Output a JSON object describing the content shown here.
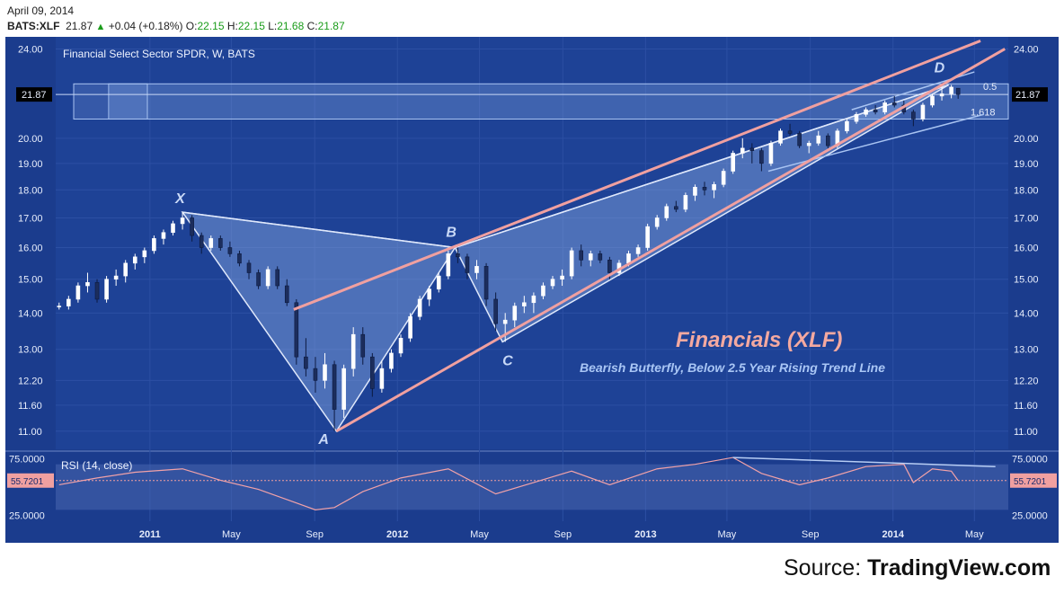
{
  "header": {
    "date": "April 09, 2014",
    "symbol": "BATS:XLF",
    "last": "21.87",
    "change": "+0.04 (+0.18%)",
    "open_label": "O:",
    "open": "22.15",
    "high_label": "H:",
    "high": "22.15",
    "low_label": "L:",
    "low": "21.68",
    "close_label": "C:",
    "close": "21.87"
  },
  "source": {
    "prefix": "Source: ",
    "name": "TradingView.com"
  },
  "colors": {
    "background": "#1b3c8d",
    "accent_pink": "#f0a0a0",
    "pattern_fill": "#8fb0e8",
    "title_pink": "#f4a9a0",
    "subtitle_blue": "#a9c6f5",
    "up_candle": "#ffffff",
    "down_candle": "#1c2d5c"
  },
  "chart_data": [
    {
      "type": "candlestick",
      "title": "Financial Select Sector SPDR, W, BATS",
      "annotation_title": "Financials (XLF)",
      "annotation_subtitle": "Bearish Butterfly, Below 2.5 Year Rising Trend Line",
      "y_scale": "log",
      "ylim": [
        10.6,
        24.6
      ],
      "y_ticks": [
        "24.00",
        "21.87",
        "20.00",
        "19.00",
        "18.00",
        "17.00",
        "16.00",
        "15.00",
        "14.00",
        "13.00",
        "12.20",
        "11.60",
        "11.00"
      ],
      "x_ticks": [
        "2011",
        "May",
        "Sep",
        "2012",
        "May",
        "Sep",
        "2013",
        "May",
        "Sep",
        "2014",
        "May"
      ],
      "x_tick_dates": [
        "2011-01-01",
        "2011-05-01",
        "2011-09-01",
        "2012-01-01",
        "2012-05-01",
        "2012-09-01",
        "2013-01-01",
        "2013-05-01",
        "2013-09-01",
        "2014-01-01",
        "2014-05-01"
      ],
      "xlim": [
        "2010-08-15",
        "2014-06-20"
      ],
      "last_price": "21.87",
      "fib_labels": [
        "0.5",
        "1.618"
      ],
      "fib_zone": [
        20.8,
        22.35
      ],
      "pattern_points": [
        {
          "label": "X",
          "date": "2011-02-18",
          "price": 17.2
        },
        {
          "label": "A",
          "date": "2011-10-03",
          "price": 11.0
        },
        {
          "label": "B",
          "date": "2012-03-26",
          "price": 16.0
        },
        {
          "label": "C",
          "date": "2012-06-04",
          "price": 13.2
        },
        {
          "label": "D",
          "date": "2014-03-24",
          "price": 22.3
        }
      ],
      "trend_lines": [
        {
          "name": "rising-trend-line",
          "color": "pink",
          "points": [
            [
              "2011-10-03",
              11.0
            ],
            [
              "2014-06-15",
              24.0
            ]
          ]
        },
        {
          "name": "upper-trend-line",
          "color": "pink",
          "points": [
            [
              "2011-08-01",
              14.1
            ],
            [
              "2014-05-10",
              24.4
            ]
          ]
        }
      ],
      "candles": [
        [
          "2010-08-20",
          14.2,
          14.3,
          14.1,
          14.2
        ],
        [
          "2010-09-03",
          14.2,
          14.5,
          14.1,
          14.4
        ],
        [
          "2010-09-17",
          14.4,
          14.9,
          14.3,
          14.8
        ],
        [
          "2010-10-01",
          14.8,
          15.2,
          14.6,
          14.9
        ],
        [
          "2010-10-15",
          14.9,
          15.0,
          14.3,
          14.4
        ],
        [
          "2010-10-29",
          14.4,
          15.1,
          14.3,
          15.0
        ],
        [
          "2010-11-12",
          15.0,
          15.3,
          14.8,
          15.1
        ],
        [
          "2010-11-26",
          15.1,
          15.6,
          14.9,
          15.5
        ],
        [
          "2010-12-10",
          15.5,
          15.8,
          15.3,
          15.7
        ],
        [
          "2010-12-24",
          15.7,
          16.0,
          15.5,
          15.9
        ],
        [
          "2011-01-07",
          15.9,
          16.4,
          15.8,
          16.3
        ],
        [
          "2011-01-21",
          16.3,
          16.6,
          16.1,
          16.5
        ],
        [
          "2011-02-04",
          16.5,
          16.9,
          16.4,
          16.8
        ],
        [
          "2011-02-18",
          16.8,
          17.2,
          16.6,
          17.0
        ],
        [
          "2011-03-04",
          17.0,
          17.1,
          16.2,
          16.4
        ],
        [
          "2011-03-18",
          16.4,
          16.5,
          15.8,
          16.0
        ],
        [
          "2011-04-01",
          16.0,
          16.4,
          15.9,
          16.3
        ],
        [
          "2011-04-15",
          16.3,
          16.4,
          15.9,
          16.0
        ],
        [
          "2011-04-29",
          16.0,
          16.2,
          15.7,
          15.8
        ],
        [
          "2011-05-13",
          15.8,
          15.9,
          15.4,
          15.5
        ],
        [
          "2011-05-27",
          15.5,
          15.6,
          15.0,
          15.2
        ],
        [
          "2011-06-10",
          15.2,
          15.3,
          14.7,
          14.8
        ],
        [
          "2011-06-24",
          14.8,
          15.4,
          14.7,
          15.3
        ],
        [
          "2011-07-08",
          15.3,
          15.4,
          14.7,
          14.8
        ],
        [
          "2011-07-22",
          14.8,
          15.0,
          14.2,
          14.3
        ],
        [
          "2011-08-05",
          14.3,
          14.4,
          12.6,
          12.8
        ],
        [
          "2011-08-19",
          12.8,
          13.3,
          12.3,
          12.5
        ],
        [
          "2011-09-02",
          12.5,
          12.8,
          11.9,
          12.2
        ],
        [
          "2011-09-16",
          12.2,
          12.9,
          12.0,
          12.6
        ],
        [
          "2011-09-30",
          12.6,
          12.7,
          11.0,
          11.5
        ],
        [
          "2011-10-14",
          11.5,
          12.6,
          11.3,
          12.5
        ],
        [
          "2011-10-28",
          12.5,
          13.6,
          12.3,
          13.4
        ],
        [
          "2011-11-11",
          13.4,
          13.6,
          12.6,
          12.8
        ],
        [
          "2011-11-25",
          12.8,
          12.9,
          11.8,
          12.0
        ],
        [
          "2011-12-09",
          12.0,
          12.7,
          11.9,
          12.5
        ],
        [
          "2011-12-23",
          12.5,
          13.0,
          12.4,
          12.9
        ],
        [
          "2012-01-06",
          12.9,
          13.4,
          12.8,
          13.3
        ],
        [
          "2012-01-20",
          13.3,
          14.0,
          13.2,
          13.9
        ],
        [
          "2012-02-03",
          13.9,
          14.5,
          13.8,
          14.4
        ],
        [
          "2012-02-17",
          14.4,
          14.8,
          14.2,
          14.7
        ],
        [
          "2012-03-02",
          14.7,
          15.2,
          14.6,
          15.1
        ],
        [
          "2012-03-16",
          15.1,
          15.9,
          15.0,
          15.8
        ],
        [
          "2012-03-30",
          15.8,
          16.0,
          15.5,
          15.7
        ],
        [
          "2012-04-13",
          15.7,
          15.8,
          15.0,
          15.2
        ],
        [
          "2012-04-27",
          15.2,
          15.6,
          15.0,
          15.4
        ],
        [
          "2012-05-11",
          15.4,
          15.5,
          14.2,
          14.4
        ],
        [
          "2012-05-25",
          14.4,
          14.6,
          13.5,
          13.7
        ],
        [
          "2012-06-08",
          13.7,
          14.0,
          13.2,
          13.8
        ],
        [
          "2012-06-22",
          13.8,
          14.3,
          13.6,
          14.2
        ],
        [
          "2012-07-06",
          14.2,
          14.5,
          14.0,
          14.3
        ],
        [
          "2012-07-20",
          14.3,
          14.6,
          14.0,
          14.5
        ],
        [
          "2012-08-03",
          14.5,
          14.9,
          14.4,
          14.8
        ],
        [
          "2012-08-17",
          14.8,
          15.1,
          14.7,
          15.0
        ],
        [
          "2012-08-31",
          15.0,
          15.3,
          14.8,
          15.1
        ],
        [
          "2012-09-14",
          15.1,
          16.0,
          15.0,
          15.9
        ],
        [
          "2012-09-28",
          15.9,
          16.1,
          15.4,
          15.6
        ],
        [
          "2012-10-12",
          15.6,
          15.9,
          15.4,
          15.8
        ],
        [
          "2012-10-26",
          15.8,
          15.9,
          15.5,
          15.6
        ],
        [
          "2012-11-09",
          15.6,
          15.7,
          15.0,
          15.2
        ],
        [
          "2012-11-23",
          15.2,
          15.6,
          15.1,
          15.5
        ],
        [
          "2012-12-07",
          15.5,
          15.9,
          15.4,
          15.8
        ],
        [
          "2012-12-21",
          15.8,
          16.1,
          15.7,
          16.0
        ],
        [
          "2013-01-04",
          16.0,
          16.8,
          15.9,
          16.7
        ],
        [
          "2013-01-18",
          16.7,
          17.1,
          16.6,
          17.0
        ],
        [
          "2013-02-01",
          17.0,
          17.5,
          16.9,
          17.4
        ],
        [
          "2013-02-15",
          17.4,
          17.6,
          17.2,
          17.3
        ],
        [
          "2013-03-01",
          17.3,
          17.9,
          17.2,
          17.8
        ],
        [
          "2013-03-15",
          17.8,
          18.2,
          17.6,
          18.1
        ],
        [
          "2013-03-29",
          18.1,
          18.3,
          17.8,
          18.0
        ],
        [
          "2013-04-12",
          18.0,
          18.3,
          17.7,
          18.2
        ],
        [
          "2013-04-26",
          18.2,
          18.8,
          18.1,
          18.7
        ],
        [
          "2013-05-10",
          18.7,
          19.5,
          18.6,
          19.4
        ],
        [
          "2013-05-24",
          19.4,
          20.0,
          19.2,
          19.6
        ],
        [
          "2013-06-07",
          19.6,
          19.8,
          19.0,
          19.5
        ],
        [
          "2013-06-21",
          19.5,
          19.6,
          18.7,
          19.0
        ],
        [
          "2013-07-05",
          19.0,
          19.9,
          18.9,
          19.8
        ],
        [
          "2013-07-19",
          19.8,
          20.4,
          19.7,
          20.3
        ],
        [
          "2013-08-02",
          20.3,
          20.6,
          20.1,
          20.2
        ],
        [
          "2013-08-16",
          20.2,
          20.3,
          19.6,
          19.7
        ],
        [
          "2013-08-30",
          19.7,
          19.9,
          19.4,
          19.8
        ],
        [
          "2013-09-13",
          19.8,
          20.3,
          19.7,
          20.1
        ],
        [
          "2013-09-27",
          20.1,
          20.2,
          19.6,
          19.7
        ],
        [
          "2013-10-11",
          19.7,
          20.4,
          19.6,
          20.3
        ],
        [
          "2013-10-25",
          20.3,
          20.8,
          20.2,
          20.7
        ],
        [
          "2013-11-08",
          20.7,
          21.1,
          20.6,
          21.0
        ],
        [
          "2013-11-22",
          21.0,
          21.3,
          20.9,
          21.2
        ],
        [
          "2013-12-06",
          21.2,
          21.4,
          21.0,
          21.1
        ],
        [
          "2013-12-20",
          21.1,
          21.6,
          21.0,
          21.5
        ],
        [
          "2014-01-03",
          21.5,
          21.8,
          21.3,
          21.4
        ],
        [
          "2014-01-17",
          21.4,
          21.6,
          21.0,
          21.1
        ],
        [
          "2014-01-31",
          21.1,
          21.2,
          20.5,
          20.8
        ],
        [
          "2014-02-14",
          20.8,
          21.5,
          20.7,
          21.4
        ],
        [
          "2014-02-28",
          21.4,
          21.9,
          21.3,
          21.8
        ],
        [
          "2014-03-14",
          21.8,
          22.2,
          21.6,
          21.9
        ],
        [
          "2014-03-28",
          21.9,
          22.3,
          21.7,
          22.2
        ],
        [
          "2014-04-07",
          22.15,
          22.15,
          21.68,
          21.87
        ]
      ]
    },
    {
      "type": "line",
      "title": "RSI (14, close)",
      "ylim": [
        20,
        80
      ],
      "y_ticks": [
        "75.0000",
        "55.7201",
        "25.0000"
      ],
      "last_value": "55.7201",
      "bands": [
        30,
        70
      ],
      "divergence_line": [
        [
          "2013-05-10",
          76
        ],
        [
          "2014-06-01",
          68
        ]
      ],
      "x": [
        "2010-08-20",
        "2010-10-15",
        "2010-12-10",
        "2011-02-18",
        "2011-04-15",
        "2011-06-10",
        "2011-08-05",
        "2011-09-02",
        "2011-09-30",
        "2011-11-11",
        "2012-01-06",
        "2012-03-16",
        "2012-05-25",
        "2012-07-20",
        "2012-09-14",
        "2012-11-09",
        "2013-01-18",
        "2013-03-15",
        "2013-05-10",
        "2013-06-21",
        "2013-08-16",
        "2013-09-27",
        "2013-11-22",
        "2014-01-17",
        "2014-01-31",
        "2014-02-28",
        "2014-03-28",
        "2014-04-07"
      ],
      "values": [
        52,
        58,
        63,
        66,
        56,
        48,
        36,
        30,
        32,
        46,
        58,
        66,
        44,
        54,
        64,
        52,
        66,
        70,
        76,
        62,
        52,
        58,
        68,
        70,
        54,
        66,
        64,
        55.72
      ]
    }
  ]
}
